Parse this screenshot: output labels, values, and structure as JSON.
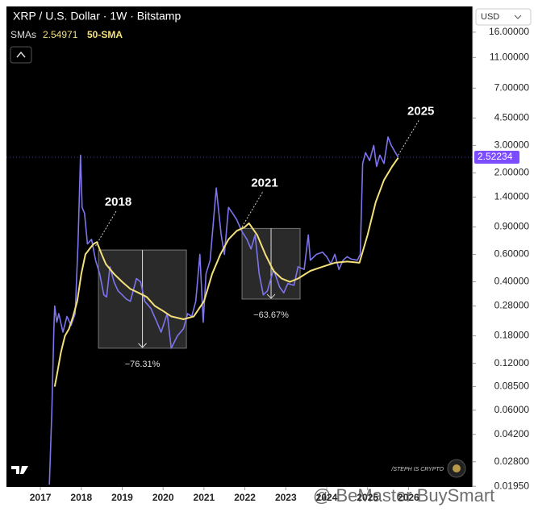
{
  "chart_data": {
    "type": "line",
    "title": "XRP / U.S. Dollar · 1W · Bitstamp",
    "indicator_label": "SMAs",
    "indicator_value": "2.54971",
    "currency": "USD",
    "last_price": {
      "value": 2.52234,
      "label": "2.52234"
    },
    "log_scale": true,
    "xlim": [
      2016.17,
      2027.57
    ],
    "ylim": [
      0.0193,
      23.4
    ],
    "xticks": [
      2017,
      2018,
      2019,
      2020,
      2021,
      2022,
      2023,
      2024,
      2025,
      2026
    ],
    "yticks": [
      {
        "value": 16,
        "label": "16.00000"
      },
      {
        "value": 11,
        "label": "11.00000"
      },
      {
        "value": 7,
        "label": "7.00000"
      },
      {
        "value": 4.5,
        "label": "4.50000"
      },
      {
        "value": 3,
        "label": "3.00000"
      },
      {
        "value": 2,
        "label": "2.00000"
      },
      {
        "value": 1.4,
        "label": "1.40000"
      },
      {
        "value": 0.9,
        "label": "0.90000"
      },
      {
        "value": 0.6,
        "label": "0.60000"
      },
      {
        "value": 0.4,
        "label": "0.40000"
      },
      {
        "value": 0.28,
        "label": "0.28000"
      },
      {
        "value": 0.18,
        "label": "0.18000"
      },
      {
        "value": 0.12,
        "label": "0.12000"
      },
      {
        "value": 0.085,
        "label": "0.08500"
      },
      {
        "value": 0.06,
        "label": "0.06000"
      },
      {
        "value": 0.042,
        "label": "0.04200"
      },
      {
        "value": 0.028,
        "label": "0.02800"
      },
      {
        "value": 0.0195,
        "label": "0.01950"
      }
    ],
    "series": [
      {
        "color": "#7d74ee",
        "x": [
          2017.22,
          2017.28,
          2017.33,
          2017.35,
          2017.4,
          2017.45,
          2017.55,
          2017.65,
          2017.75,
          2017.85,
          2017.92,
          2017.98,
          2018.02,
          2018.08,
          2018.15,
          2018.25,
          2018.35,
          2018.45,
          2018.55,
          2018.62,
          2018.7,
          2018.8,
          2018.9,
          2019.0,
          2019.1,
          2019.2,
          2019.35,
          2019.45,
          2019.55,
          2019.7,
          2019.85,
          2019.95,
          2020.1,
          2020.2,
          2020.35,
          2020.5,
          2020.6,
          2020.7,
          2020.8,
          2020.9,
          2020.98,
          2021.05,
          2021.15,
          2021.3,
          2021.42,
          2021.5,
          2021.6,
          2021.7,
          2021.8,
          2021.92,
          2022.05,
          2022.15,
          2022.25,
          2022.35,
          2022.45,
          2022.55,
          2022.7,
          2022.85,
          2022.95,
          2023.05,
          2023.2,
          2023.3,
          2023.45,
          2023.55,
          2023.6,
          2023.75,
          2023.9,
          2024.0,
          2024.1,
          2024.2,
          2024.3,
          2024.4,
          2024.5,
          2024.6,
          2024.75,
          2024.82,
          2024.88,
          2024.95,
          2025.05,
          2025.15,
          2025.22,
          2025.3,
          2025.4,
          2025.5,
          2025.58,
          2025.68,
          2025.75
        ],
        "values": [
          0.02,
          0.06,
          0.2,
          0.28,
          0.22,
          0.25,
          0.19,
          0.24,
          0.21,
          0.25,
          0.7,
          2.6,
          1.2,
          1.1,
          0.7,
          0.75,
          0.55,
          0.45,
          0.33,
          0.32,
          0.5,
          0.4,
          0.35,
          0.33,
          0.31,
          0.3,
          0.42,
          0.4,
          0.3,
          0.27,
          0.22,
          0.19,
          0.25,
          0.15,
          0.18,
          0.2,
          0.25,
          0.24,
          0.3,
          0.6,
          0.22,
          0.45,
          0.55,
          1.6,
          0.8,
          0.6,
          1.2,
          1.1,
          1.0,
          0.85,
          0.75,
          0.65,
          0.8,
          0.45,
          0.33,
          0.35,
          0.48,
          0.37,
          0.34,
          0.39,
          0.38,
          0.5,
          0.48,
          0.8,
          0.55,
          0.6,
          0.62,
          0.58,
          0.52,
          0.6,
          0.48,
          0.55,
          0.58,
          0.56,
          0.55,
          0.6,
          2.3,
          2.7,
          2.4,
          3.0,
          2.2,
          2.6,
          2.3,
          3.4,
          3.0,
          2.7,
          2.52
        ]
      },
      {
        "name": "50-SMA",
        "color": "#f3e07a",
        "x": [
          2017.35,
          2017.4,
          2017.5,
          2017.6,
          2017.7,
          2017.8,
          2017.9,
          2018.0,
          2018.1,
          2018.2,
          2018.3,
          2018.38,
          2018.5,
          2018.6,
          2018.8,
          2019.0,
          2019.2,
          2019.4,
          2019.6,
          2019.8,
          2020.0,
          2020.2,
          2020.5,
          2020.75,
          2021.0,
          2021.2,
          2021.4,
          2021.6,
          2021.8,
          2022.0,
          2022.1,
          2022.3,
          2022.5,
          2022.7,
          2022.9,
          2023.1,
          2023.3,
          2023.6,
          2023.9,
          2024.2,
          2024.5,
          2024.8,
          2025.0,
          2025.2,
          2025.4,
          2025.6,
          2025.75
        ],
        "values": [
          0.085,
          0.1,
          0.14,
          0.18,
          0.2,
          0.24,
          0.3,
          0.45,
          0.6,
          0.65,
          0.7,
          0.72,
          0.6,
          0.52,
          0.45,
          0.4,
          0.36,
          0.34,
          0.32,
          0.28,
          0.26,
          0.24,
          0.23,
          0.24,
          0.3,
          0.45,
          0.6,
          0.75,
          0.85,
          0.9,
          0.95,
          0.8,
          0.6,
          0.47,
          0.42,
          0.4,
          0.42,
          0.47,
          0.5,
          0.53,
          0.54,
          0.53,
          0.8,
          1.3,
          1.8,
          2.2,
          2.5
        ]
      }
    ],
    "annotations": [
      {
        "text": "2018",
        "x": 2018.35,
        "y": 0.68
      },
      {
        "text": "2021",
        "x": 2021.93,
        "y": 0.9
      },
      {
        "text": "2025",
        "x": 2025.75,
        "y": 2.6
      }
    ],
    "drawdowns": [
      {
        "x": [
          2018.42,
          2020.57
        ],
        "y": [
          0.64,
          0.15
        ],
        "label": "−76.31%"
      },
      {
        "x": [
          2021.93,
          2023.35
        ],
        "y": [
          0.88,
          0.31
        ],
        "label": "−63.67%"
      }
    ],
    "credit": "/STEPH IS CRYPTO",
    "watermark": "@ BeMaster BuySmart"
  }
}
